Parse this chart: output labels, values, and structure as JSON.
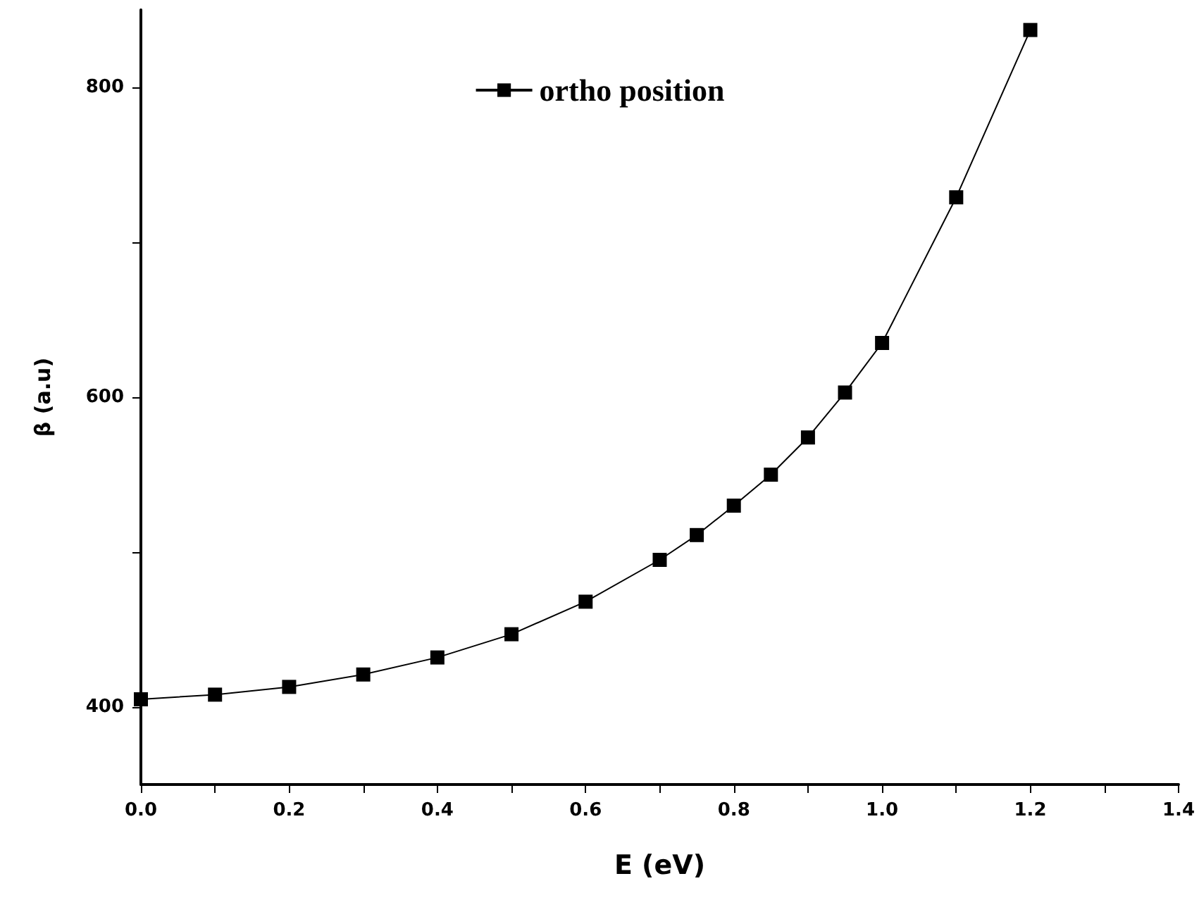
{
  "chart_data": {
    "type": "line",
    "xlabel": "E (eV)",
    "ylabel": "β (a.u)",
    "x": [
      0.0,
      0.1,
      0.2,
      0.3,
      0.4,
      0.5,
      0.6,
      0.7,
      0.75,
      0.8,
      0.85,
      0.9,
      0.95,
      1.0,
      1.1,
      1.2
    ],
    "series": [
      {
        "name": "ortho position",
        "color": "#000000",
        "values": [
          405,
          408,
          413,
          421,
          432,
          447,
          468,
          495,
          511,
          530,
          550,
          574,
          603,
          635,
          729,
          837
        ]
      }
    ],
    "xlim": [
      0,
      1.4
    ],
    "xticks": [
      {
        "value": 0,
        "label": "0.0"
      },
      {
        "value": 0.1,
        "label": null
      },
      {
        "value": 0.2,
        "label": "0.2"
      },
      {
        "value": 0.3,
        "label": null
      },
      {
        "value": 0.4,
        "label": "0.4"
      },
      {
        "value": 0.5,
        "label": null
      },
      {
        "value": 0.6,
        "label": "0.6"
      },
      {
        "value": 0.7,
        "label": null
      },
      {
        "value": 0.8,
        "label": "0.8"
      },
      {
        "value": 0.9,
        "label": null
      },
      {
        "value": 1.0,
        "label": "1.0"
      },
      {
        "value": 1.1,
        "label": null
      },
      {
        "value": 1.2,
        "label": "1.2"
      },
      {
        "value": 1.3,
        "label": null
      },
      {
        "value": 1.4,
        "label": "1.4"
      }
    ],
    "ylim": [
      350,
      850
    ],
    "yticks": [
      400,
      {
        "value": 500,
        "label": null
      },
      600,
      {
        "value": 700,
        "label": null
      },
      800
    ],
    "grid": false,
    "legend": "top",
    "marker": "square",
    "line_style": "solid"
  }
}
